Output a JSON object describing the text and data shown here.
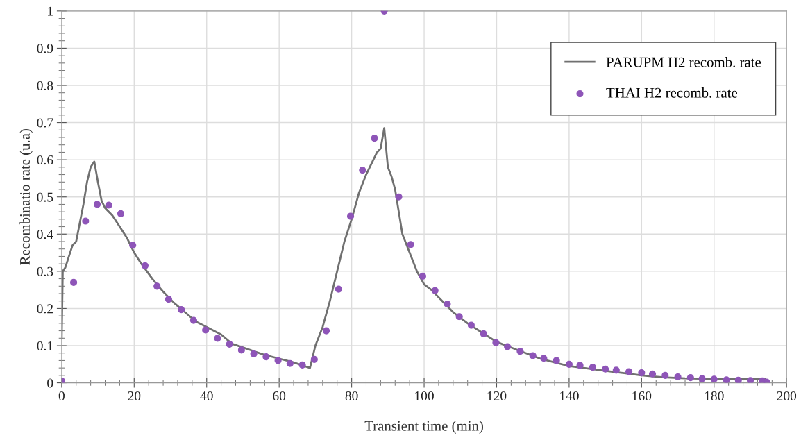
{
  "chart_data": {
    "type": "line",
    "xlabel": "Transient time (min)",
    "ylabel": "Recombinatio rate (u.a)",
    "xlim": [
      0,
      200
    ],
    "xticks": [
      0,
      20,
      40,
      60,
      80,
      100,
      120,
      140,
      160,
      180,
      200
    ],
    "ylim": [
      0,
      1
    ],
    "yticks": [
      0,
      0.1,
      0.2,
      0.3,
      0.4,
      0.5,
      0.6,
      0.7,
      0.8,
      0.9,
      1
    ],
    "grid": true,
    "legend": "top right",
    "series": [
      {
        "name": "PARUPM H2 recomb. rate",
        "color": "#707070",
        "line_style": "solid",
        "marker": "none",
        "x": [
          0,
          0.3,
          1,
          2,
          3,
          4,
          5,
          6,
          7,
          8,
          9,
          10,
          11,
          12,
          14,
          16,
          18,
          20,
          22,
          25,
          28,
          31,
          34,
          37,
          40,
          44,
          47,
          50,
          53,
          56,
          60,
          64,
          67,
          68.5,
          70,
          72,
          74,
          76,
          78,
          80,
          82,
          84,
          86,
          87,
          88,
          89,
          90,
          91,
          92,
          93,
          94,
          96,
          98,
          100,
          102,
          105,
          108,
          112,
          116,
          120,
          124,
          128,
          132,
          136,
          140,
          144,
          148,
          152,
          156,
          160,
          166,
          172,
          180,
          188,
          194
        ],
        "values": [
          0.12,
          0.3,
          0.31,
          0.34,
          0.37,
          0.38,
          0.43,
          0.48,
          0.54,
          0.58,
          0.595,
          0.54,
          0.49,
          0.47,
          0.45,
          0.42,
          0.39,
          0.35,
          0.32,
          0.28,
          0.245,
          0.215,
          0.19,
          0.165,
          0.15,
          0.13,
          0.105,
          0.095,
          0.085,
          0.075,
          0.065,
          0.055,
          0.045,
          0.04,
          0.1,
          0.15,
          0.22,
          0.3,
          0.38,
          0.44,
          0.51,
          0.56,
          0.6,
          0.62,
          0.63,
          0.685,
          0.58,
          0.555,
          0.52,
          0.46,
          0.4,
          0.35,
          0.3,
          0.265,
          0.25,
          0.22,
          0.19,
          0.16,
          0.135,
          0.11,
          0.095,
          0.08,
          0.065,
          0.055,
          0.045,
          0.04,
          0.035,
          0.03,
          0.025,
          0.02,
          0.015,
          0.012,
          0.01,
          0.01,
          0.01
        ]
      },
      {
        "name": "THAI H2 recomb. rate",
        "type": "scatter",
        "color": "#8e55b8",
        "marker": "circle",
        "x": [
          0,
          3.3,
          6.6,
          9.8,
          13,
          16.3,
          19.6,
          23,
          26.3,
          29.5,
          33,
          36.4,
          39.7,
          43,
          46.3,
          49.6,
          53,
          56.4,
          59.7,
          63,
          66.4,
          69.7,
          73,
          76.4,
          79.7,
          83,
          86.3,
          89,
          93,
          96.3,
          99.6,
          103,
          106.4,
          109.7,
          113,
          116.4,
          119.8,
          123,
          126.5,
          130,
          133,
          136.5,
          140,
          143,
          146.5,
          150,
          153,
          156.5,
          160,
          163,
          166.5,
          170,
          173.5,
          176.7,
          180,
          183.4,
          186.7,
          190,
          193.3,
          194.5
        ],
        "values": [
          0.005,
          0.27,
          0.435,
          0.48,
          0.478,
          0.455,
          0.37,
          0.315,
          0.26,
          0.225,
          0.197,
          0.168,
          0.142,
          0.12,
          0.104,
          0.088,
          0.078,
          0.07,
          0.06,
          0.052,
          0.048,
          0.063,
          0.14,
          0.252,
          0.448,
          0.572,
          0.658,
          1.0,
          0.5,
          0.372,
          0.287,
          0.248,
          0.212,
          0.178,
          0.155,
          0.132,
          0.108,
          0.097,
          0.085,
          0.073,
          0.066,
          0.06,
          0.05,
          0.047,
          0.042,
          0.037,
          0.034,
          0.03,
          0.027,
          0.024,
          0.02,
          0.016,
          0.014,
          0.011,
          0.01,
          0.008,
          0.007,
          0.006,
          0.005,
          0.002
        ]
      }
    ]
  }
}
